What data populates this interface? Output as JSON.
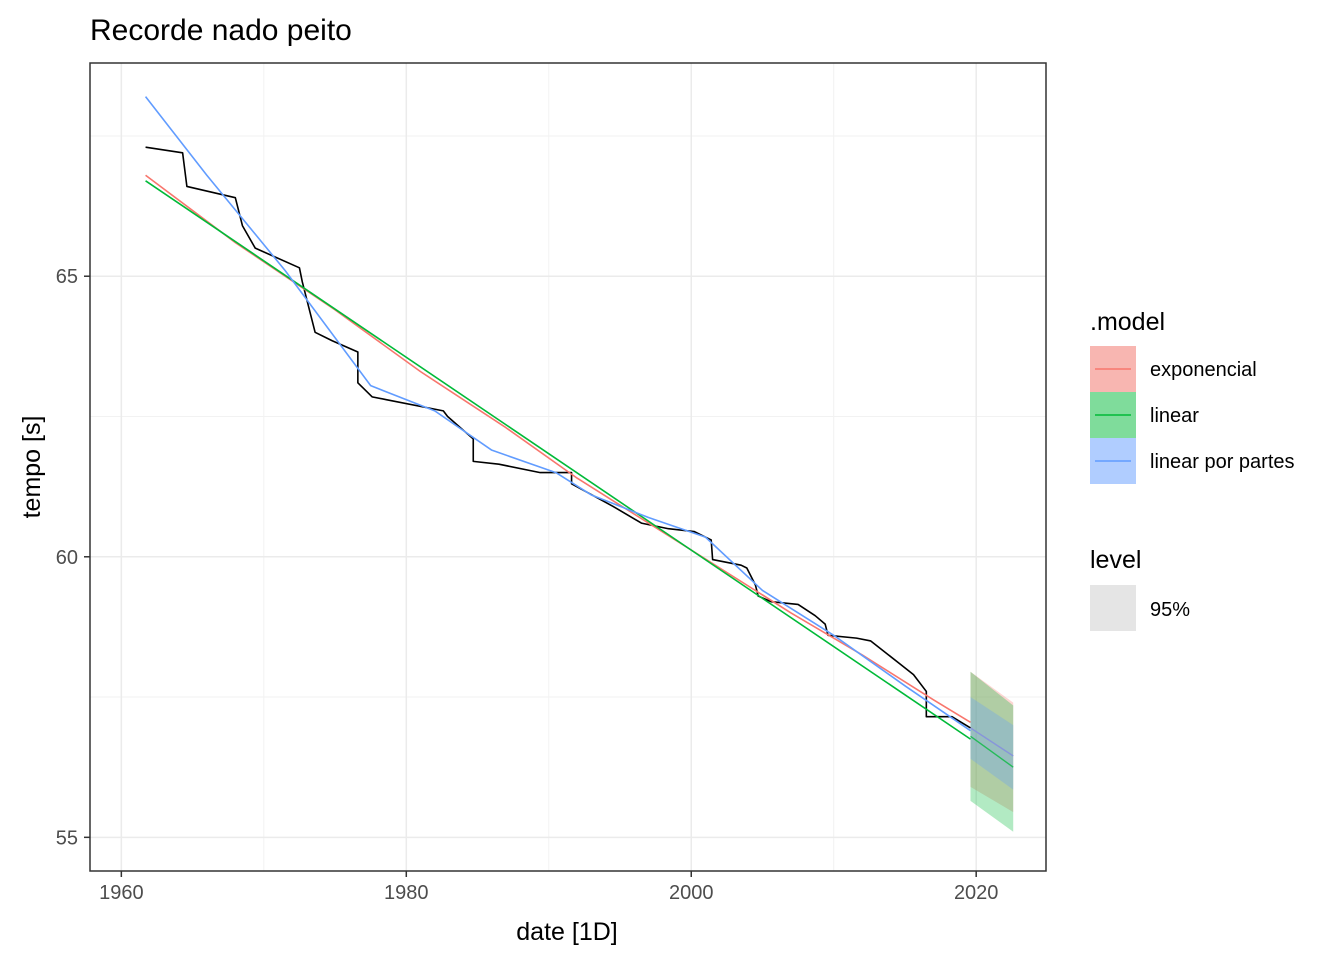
{
  "chart_data": {
    "type": "line",
    "title": "Recorde nado peito",
    "xlabel": "date [1D]",
    "ylabel": "tempo [s]",
    "xlim": [
      1957.8,
      2024.9
    ],
    "ylim": [
      54.4,
      68.8
    ],
    "x_ticks": [
      1960,
      1980,
      2000,
      2020
    ],
    "y_ticks": [
      55,
      60,
      65
    ],
    "grid": true,
    "observed": {
      "color": "#000000",
      "x": [
        1961.7,
        1964.3,
        1964.6,
        1966.3,
        1968.0,
        1968.5,
        1969.4,
        1972.5,
        1972.7,
        1973.6,
        1974.8,
        1976.6,
        1976.6,
        1977.6,
        1978.6,
        1982.6,
        1982.9,
        1984.7,
        1984.7,
        1986.5,
        1989.4,
        1991.6,
        1991.6,
        1994.5,
        1996.5,
        1998.4,
        2000.2,
        2001.4,
        2001.5,
        2003.5,
        2003.9,
        2004.5,
        2004.7,
        2005.6,
        2007.5,
        2008.7,
        2009.4,
        2009.6,
        2011.6,
        2012.6,
        2014.6,
        2015.6,
        2016.5,
        2016.5,
        2017.3,
        2018.3,
        2019.6
      ],
      "y": [
        67.3,
        67.2,
        66.6,
        66.5,
        66.4,
        65.9,
        65.5,
        65.15,
        64.9,
        64.0,
        63.85,
        63.65,
        63.1,
        62.85,
        62.8,
        62.6,
        62.5,
        62.1,
        61.7,
        61.65,
        61.5,
        61.5,
        61.3,
        60.9,
        60.6,
        60.5,
        60.45,
        60.3,
        59.95,
        59.85,
        59.8,
        59.5,
        59.3,
        59.2,
        59.15,
        58.95,
        58.8,
        58.6,
        58.55,
        58.5,
        58.1,
        57.9,
        57.6,
        57.15,
        57.15,
        57.15,
        56.95
      ]
    },
    "series": [
      {
        "name": "exponencial",
        "color": "#F8766D",
        "x": [
          1961.7,
          1968,
          1975,
          1981,
          1987,
          1992,
          1997,
          2002,
          2007,
          2012,
          2017,
          2019.6
        ],
        "y": [
          66.8,
          65.6,
          64.4,
          63.3,
          62.3,
          61.4,
          60.6,
          59.8,
          59.0,
          58.25,
          57.45,
          57.05
        ]
      },
      {
        "name": "linear",
        "color": "#00BA38",
        "x": [
          1961.7,
          2019.6
        ],
        "y": [
          66.7,
          56.75
        ]
      },
      {
        "name": "linear por partes",
        "color": "#619CFF",
        "x": [
          1961.7,
          1966,
          1971.5,
          1977.5,
          1982,
          1986,
          1990.5,
          1993,
          1997,
          2001,
          2005,
          2010,
          2015,
          2019.6
        ],
        "y": [
          68.2,
          66.8,
          65.1,
          63.05,
          62.6,
          61.9,
          61.5,
          61.1,
          60.7,
          60.35,
          59.4,
          58.6,
          57.7,
          56.9
        ]
      }
    ],
    "forecast": {
      "level": "95%",
      "x": [
        2019.6,
        2022.6
      ],
      "models": [
        {
          "name": "exponencial",
          "color": "#F8766D",
          "mean": [
            56.95,
            56.45
          ],
          "lower": [
            55.9,
            55.45
          ],
          "upper": [
            57.95,
            57.4
          ]
        },
        {
          "name": "linear",
          "color": "#00BA38",
          "mean": [
            56.8,
            56.25
          ],
          "lower": [
            55.65,
            55.1
          ],
          "upper": [
            57.95,
            57.35
          ]
        },
        {
          "name": "linear por partes",
          "color": "#619CFF",
          "mean": [
            56.95,
            56.45
          ],
          "lower": [
            56.4,
            55.85
          ],
          "upper": [
            57.5,
            57.0
          ]
        }
      ]
    },
    "legend": {
      "position": "right",
      "model_title": ".model",
      "model_items": [
        {
          "label": "exponencial",
          "color": "#F8766D",
          "fill": "#F8B6B1"
        },
        {
          "label": "linear",
          "color": "#00BA38",
          "fill": "#7FDC9B"
        },
        {
          "label": "linear por partes",
          "color": "#619CFF",
          "fill": "#B0CDFF"
        }
      ],
      "level_title": "level",
      "level_items": [
        {
          "label": "95%",
          "fill": "#E5E5E5"
        }
      ]
    }
  }
}
